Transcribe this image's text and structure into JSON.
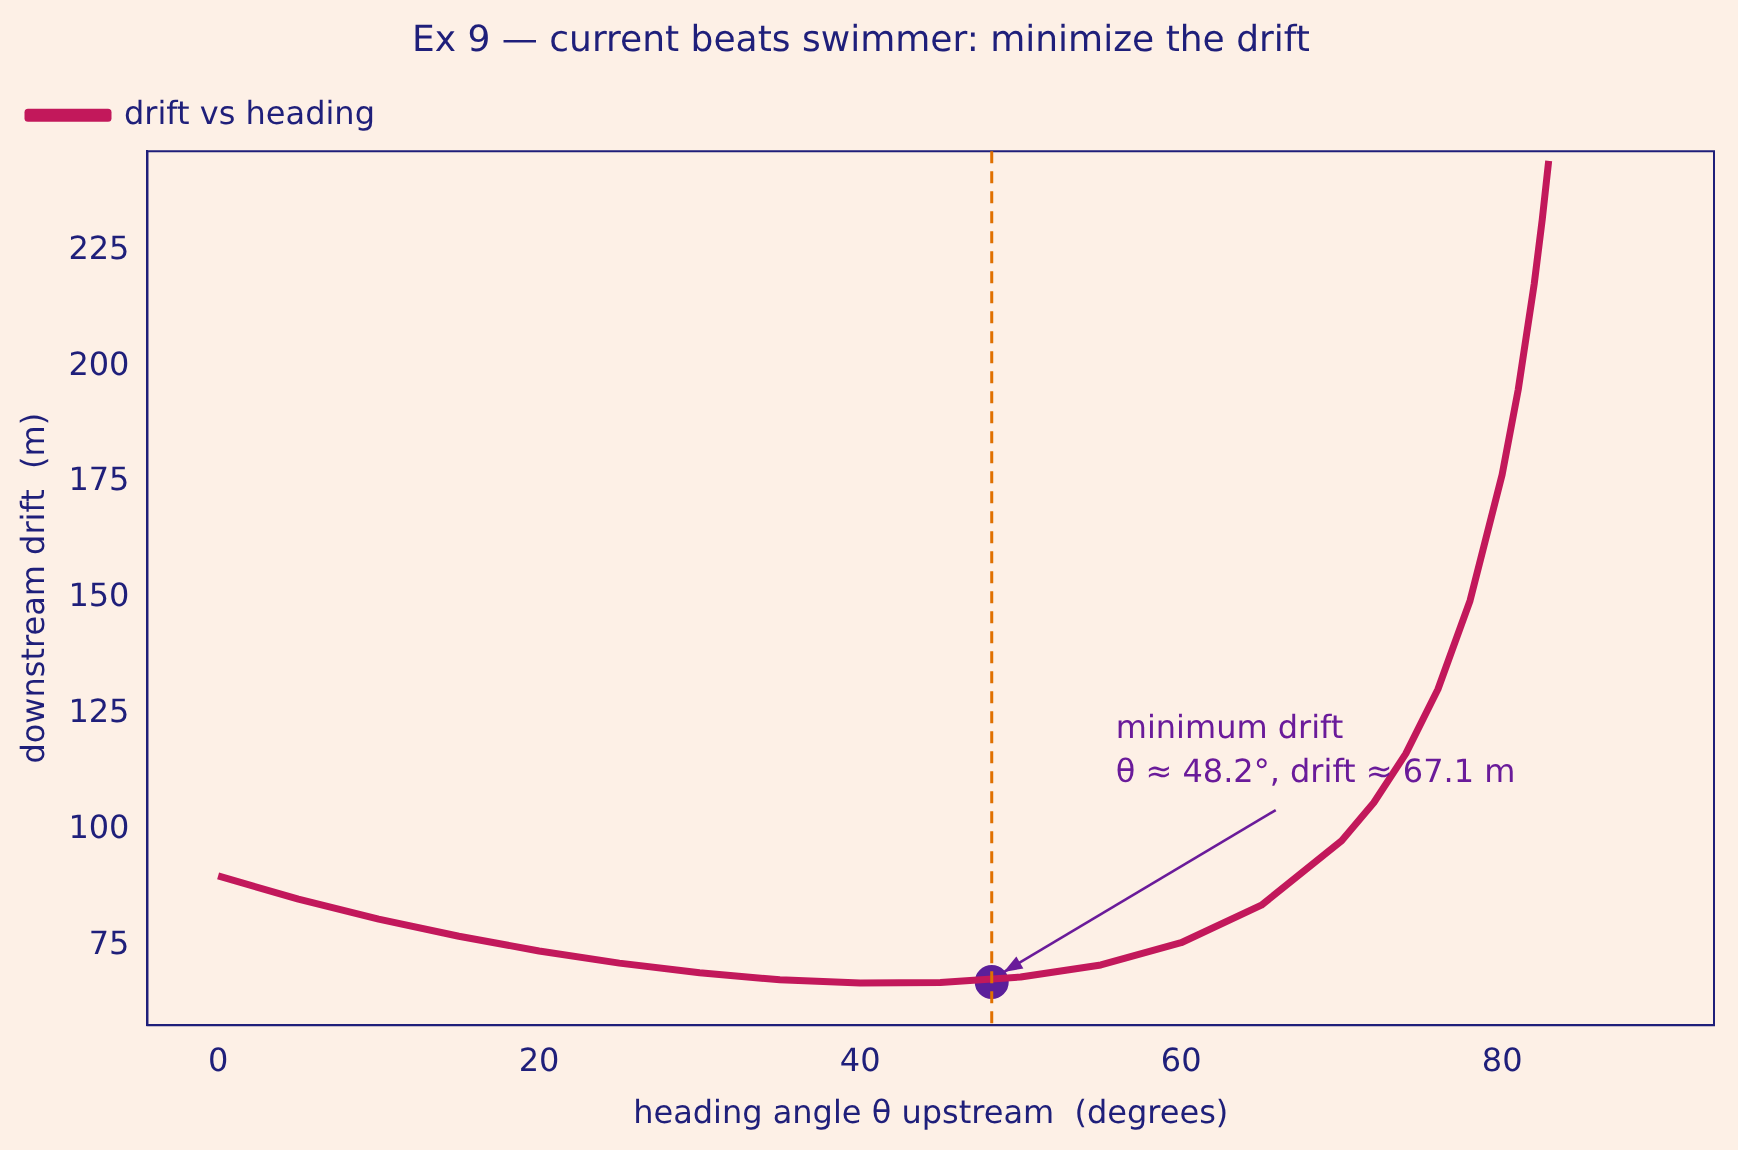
{
  "chart_data": {
    "type": "line",
    "title": "Ex 9 — current beats swimmer: minimize the drift",
    "xlabel": "heading angle θ upstream  (degrees)",
    "ylabel": "downstream drift  (m)",
    "xlim": [
      -4.4,
      93.2
    ],
    "ylim": [
      57.8,
      246.4
    ],
    "xticks": [
      0,
      20,
      40,
      60,
      80
    ],
    "yticks": [
      75,
      100,
      125,
      150,
      175,
      200,
      225
    ],
    "grid": false,
    "legend": "top left",
    "marker": "none",
    "line_style": "solid",
    "series": [
      {
        "name": "drift vs heading",
        "color": "#c2185b",
        "x": [
          0,
          5,
          10,
          15,
          20,
          25,
          30,
          35,
          40,
          45,
          50,
          55,
          60,
          65,
          70,
          72,
          74,
          76,
          78,
          80,
          81,
          82,
          82.5,
          82.9
        ],
        "values": [
          90,
          85,
          80.7,
          77,
          73.8,
          71.2,
          69.1,
          67.6,
          66.9,
          67,
          68.2,
          70.8,
          75.6,
          83.7,
          97.6,
          105.8,
          116.4,
          130.3,
          149.4,
          176.6,
          194.9,
          217.8,
          231.7,
          244.3
        ]
      },
      {
        "type": "scatter",
        "color": "#5b1f9a",
        "marker": "circle",
        "x": [
          48.2
        ],
        "values": [
          67.1
        ]
      }
    ],
    "ref_lines": [
      {
        "axis": "x",
        "value": 48.2,
        "color": "#e07000",
        "line_style": "dashed"
      }
    ],
    "annotations": [
      {
        "text": "minimum drift\nθ ≈ 48.2°, drift ≈ 67.1 m",
        "x": 48.2,
        "y": 67.1
      }
    ]
  }
}
